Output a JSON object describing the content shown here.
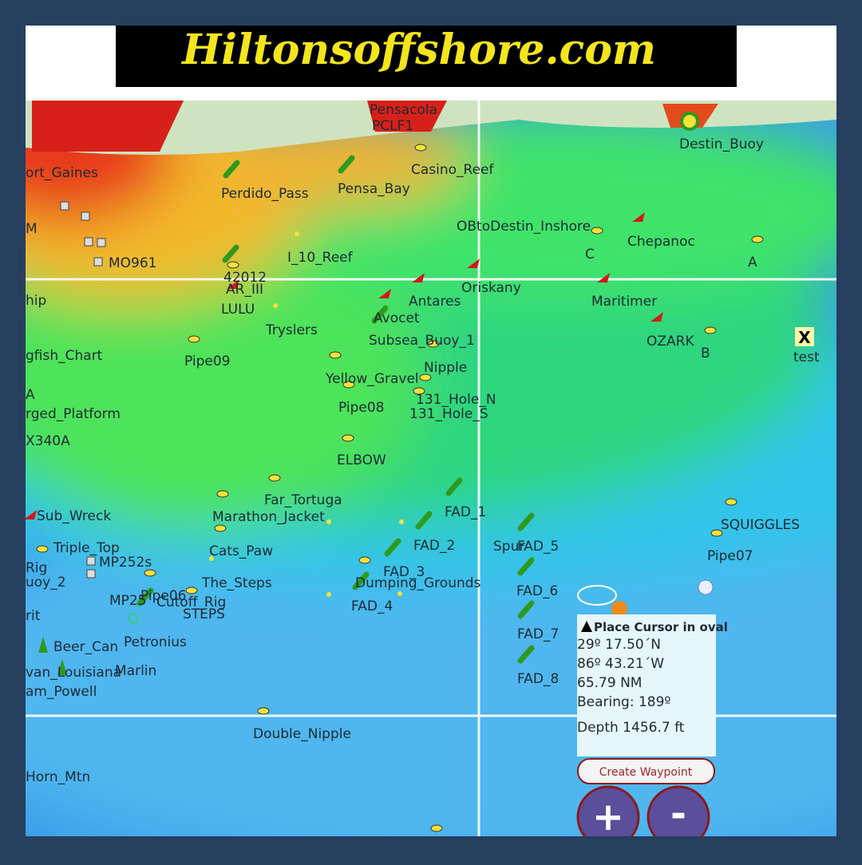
{
  "header": {
    "title": "Hiltonsoffshore.com"
  },
  "map": {
    "labels": [
      "Pensacola",
      "PCLF1",
      "Destin_Buoy",
      "ort_Gaines",
      "Casino_Reef",
      "Perdido_Pass",
      "Pensa_Bay",
      "OBtoDestin_Inshore",
      "M",
      "Chepanoc",
      "MO961",
      "I_10_Reef",
      "C",
      "A",
      "42012",
      "Oriskany",
      "AR_III",
      "Antares",
      "Maritimer",
      "hip",
      "LULU",
      "Avocet",
      "Tryslers",
      "OZARK",
      "Subsea_Buoy_1",
      "B",
      "test",
      "gfish_Chart",
      "Pipe09",
      "Nipple",
      "Yellow_Gravel",
      "131_Hole_N",
      "A",
      "Pipe08",
      "131_Hole_S",
      "rged_Platform",
      "X340A",
      "ELBOW",
      "Far_Tortuga",
      "FAD_1",
      "Sub_Wreck",
      "Marathon_Jacket",
      "SQUIGGLES",
      "FAD_2",
      "Spur",
      "FAD_5",
      "Triple_Top",
      "Cats_Paw",
      "Pipe07",
      "MP252s",
      "Rig",
      "FAD_3",
      "uoy_2",
      "The_Steps",
      "Dumping_Grounds",
      "FAD_6",
      "MP25",
      "Pipe06",
      "Cutoff_Rig",
      "STEPS",
      "FAD_4",
      "rit",
      "FAD_7",
      "Petronius",
      "Beer_Can",
      "van_Louisiana",
      "Marlin",
      "FAD_8",
      "am_Powell",
      "Double_Nipple",
      "Horn_Mtn"
    ],
    "test_marker": "X"
  },
  "info_panel": {
    "prompt": "Place Cursor in oval",
    "latitude": "29º 17.50´N",
    "longitude": "86º 43.21´W",
    "distance": "65.79 NM",
    "bearing": "Bearing: 189º",
    "depth": "Depth 1456.7 ft"
  },
  "buttons": {
    "create_waypoint": "Create Waypoint",
    "zoom_in": "+",
    "zoom_out": "-"
  }
}
